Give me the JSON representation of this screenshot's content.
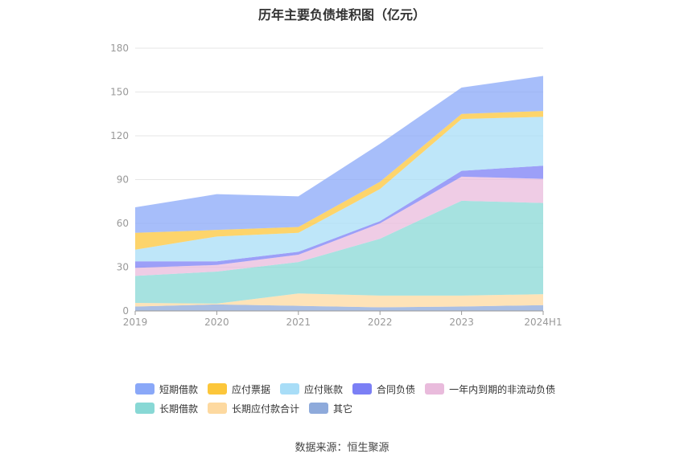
{
  "chart_data": {
    "type": "area",
    "stacked": true,
    "title": "历年主要负债堆积图（亿元）",
    "categories": [
      "2019",
      "2020",
      "2021",
      "2022",
      "2023",
      "2024H1"
    ],
    "yticks": [
      "0",
      "30",
      "60",
      "90",
      "120",
      "150",
      "180"
    ],
    "ylim": [
      0,
      180
    ],
    "series": [
      {
        "name": "其它",
        "color": "#8eaadb",
        "values": [
          3,
          4.5,
          3.5,
          2.5,
          3,
          4
        ]
      },
      {
        "name": "长期应付款合计",
        "color": "#fdd9a0",
        "values": [
          2.5,
          0.5,
          8.5,
          8,
          7.5,
          7.5
        ]
      },
      {
        "name": "长期借款",
        "color": "#88d8d5",
        "values": [
          18.5,
          22,
          21.5,
          39,
          65,
          62.5
        ]
      },
      {
        "name": "一年内到期的非流动负债",
        "color": "#e9bbdc",
        "values": [
          5.5,
          4.5,
          5,
          10.5,
          16.5,
          16.5
        ]
      },
      {
        "name": "合同负债",
        "color": "#7b7ff5",
        "values": [
          4.5,
          2.5,
          2,
          1.5,
          4,
          9
        ]
      },
      {
        "name": "应付账款",
        "color": "#a8ddf7",
        "values": [
          8,
          17,
          13,
          22,
          35.5,
          33.5
        ]
      },
      {
        "name": "应付票据",
        "color": "#fcc63a",
        "values": [
          11.5,
          4.5,
          4,
          5,
          3.5,
          4
        ]
      },
      {
        "name": "短期借款",
        "color": "#8aa8f8",
        "values": [
          17.5,
          24.5,
          21,
          26,
          18,
          24
        ]
      }
    ],
    "legend_rows": [
      [
        0,
        1,
        2,
        3,
        4
      ],
      [
        5,
        6,
        7
      ]
    ],
    "legend_order": [
      "短期借款",
      "应付票据",
      "应付账款",
      "合同负债",
      "一年内到期的非流动负债",
      "长期借款",
      "长期应付款合计",
      "其它"
    ]
  },
  "source": "数据来源：恒生聚源"
}
